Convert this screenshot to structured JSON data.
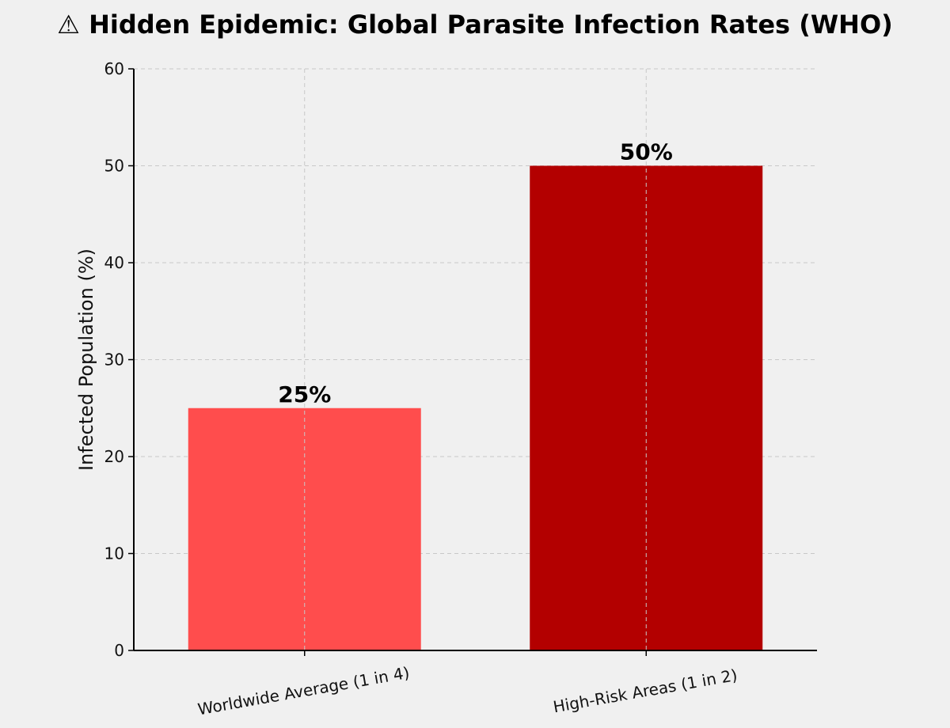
{
  "chart_data": {
    "type": "bar",
    "title": "⚠ Hidden Epidemic: Global Parasite Infection Rates (WHO)",
    "xlabel": "",
    "ylabel": "Infected Population (%)",
    "categories": [
      "Worldwide Average (1 in 4)",
      "High-Risk Areas (1 in 2)"
    ],
    "values": [
      25,
      50
    ],
    "value_labels": [
      "25%",
      "50%"
    ],
    "colors": [
      "#ff4d4d",
      "#b30000"
    ],
    "ylim": [
      0,
      60
    ],
    "yticks": [
      0,
      10,
      20,
      30,
      40,
      50,
      60
    ],
    "grid": true
  }
}
